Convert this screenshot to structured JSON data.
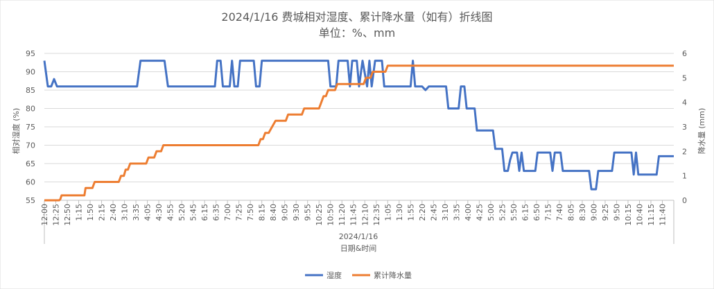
{
  "chart_data": {
    "type": "line",
    "title": "2024/1/16 费城相对湿度、累计降水量（如有）折线图",
    "subtitle": "单位：%、mm",
    "xlabel": "日期&时间",
    "x_group_label": "2024/1/16",
    "ylabel_left": "相对湿度 (%)",
    "ylabel_right": "降水量 (mm)",
    "ylim_left": [
      55,
      95
    ],
    "yticks_left": [
      55,
      60,
      65,
      70,
      75,
      80,
      85,
      90,
      95
    ],
    "ylim_right": [
      0,
      6
    ],
    "yticks_right": [
      0,
      1,
      2,
      3,
      4,
      5,
      6
    ],
    "grid": true,
    "legend_position": "bottom",
    "colors": {
      "humidity": "#4472C4",
      "precip": "#ED7D31",
      "grid": "#D9D9D9",
      "text": "#595959"
    },
    "x_tick_labels": [
      "12:00",
      "12:25",
      "12:50",
      "1:15",
      "1:50",
      "2:15",
      "2:40",
      "3:10",
      "3:35",
      "4:05",
      "4:30",
      "4:55",
      "5:20",
      "5:45",
      "6:15",
      "6:35",
      "7:00",
      "7:25",
      "7:50",
      "8:15",
      "8:40",
      "9:05",
      "9:30",
      "9:55",
      "10:25",
      "10:50",
      "11:20",
      "11:45",
      "12:10",
      "12:35",
      "1:05",
      "1:30",
      "1:55",
      "2:20",
      "2:45",
      "3:10",
      "3:35",
      "4:00",
      "4:25",
      "5:00",
      "5:25",
      "5:50",
      "6:15",
      "6:50",
      "7:15",
      "7:40",
      "8:05",
      "8:30",
      "9:00",
      "9:25",
      "9:50",
      "10:15",
      "10:40",
      "11:15",
      "11:40"
    ],
    "series": [
      {
        "name": "湿度",
        "axis": "left",
        "points": [
          [
            0,
            93
          ],
          [
            0.3,
            86
          ],
          [
            0.6,
            86
          ],
          [
            0.85,
            88
          ],
          [
            1.1,
            86
          ],
          [
            8.1,
            86
          ],
          [
            8.4,
            93
          ],
          [
            10.5,
            93
          ],
          [
            10.8,
            86
          ],
          [
            14.9,
            86
          ],
          [
            15.1,
            93
          ],
          [
            15.4,
            93
          ],
          [
            15.6,
            86
          ],
          [
            16.2,
            86
          ],
          [
            16.4,
            93
          ],
          [
            16.6,
            86
          ],
          [
            16.9,
            86
          ],
          [
            17.1,
            93
          ],
          [
            18.3,
            93
          ],
          [
            18.5,
            86
          ],
          [
            18.8,
            86
          ],
          [
            19.0,
            93
          ],
          [
            24.8,
            93
          ],
          [
            25.0,
            86
          ],
          [
            25.5,
            86
          ],
          [
            25.7,
            93
          ],
          [
            26.5,
            93
          ],
          [
            26.7,
            86
          ],
          [
            26.9,
            93
          ],
          [
            27.3,
            93
          ],
          [
            27.5,
            86
          ],
          [
            27.8,
            93
          ],
          [
            28.2,
            86
          ],
          [
            28.4,
            93
          ],
          [
            28.6,
            86
          ],
          [
            28.9,
            93
          ],
          [
            29.5,
            93
          ],
          [
            29.7,
            86
          ],
          [
            32.0,
            86
          ],
          [
            32.2,
            93
          ],
          [
            32.4,
            86
          ],
          [
            33.0,
            86
          ],
          [
            33.3,
            85
          ],
          [
            33.6,
            86
          ],
          [
            35.1,
            86
          ],
          [
            35.3,
            80
          ],
          [
            36.2,
            80
          ],
          [
            36.4,
            86
          ],
          [
            36.7,
            86
          ],
          [
            36.9,
            80
          ],
          [
            37.6,
            80
          ],
          [
            37.8,
            74
          ],
          [
            39.2,
            74
          ],
          [
            39.4,
            69
          ],
          [
            40.0,
            69
          ],
          [
            40.2,
            63
          ],
          [
            40.5,
            63
          ],
          [
            40.7,
            66
          ],
          [
            40.9,
            68
          ],
          [
            41.3,
            68
          ],
          [
            41.5,
            63
          ],
          [
            41.7,
            68
          ],
          [
            41.9,
            63
          ],
          [
            42.9,
            63
          ],
          [
            43.1,
            68
          ],
          [
            44.2,
            68
          ],
          [
            44.4,
            63
          ],
          [
            44.6,
            68
          ],
          [
            45.1,
            68
          ],
          [
            45.3,
            63
          ],
          [
            47.6,
            63
          ],
          [
            47.8,
            58
          ],
          [
            48.2,
            58
          ],
          [
            48.4,
            63
          ],
          [
            49.6,
            63
          ],
          [
            49.8,
            68
          ],
          [
            51.3,
            68
          ],
          [
            51.5,
            62
          ],
          [
            51.7,
            68
          ],
          [
            51.9,
            62
          ],
          [
            53.5,
            62
          ],
          [
            53.7,
            67
          ],
          [
            55,
            67
          ]
        ]
      },
      {
        "name": "累计降水量",
        "axis": "right",
        "points": [
          [
            0,
            0
          ],
          [
            1.3,
            0
          ],
          [
            1.4,
            0.05
          ],
          [
            1.5,
            0.2
          ],
          [
            3.5,
            0.2
          ],
          [
            3.6,
            0.5
          ],
          [
            4.2,
            0.5
          ],
          [
            4.4,
            0.75
          ],
          [
            6.5,
            0.75
          ],
          [
            6.7,
            1.0
          ],
          [
            6.95,
            1.0
          ],
          [
            7.1,
            1.25
          ],
          [
            7.3,
            1.25
          ],
          [
            7.5,
            1.5
          ],
          [
            8.9,
            1.5
          ],
          [
            9.1,
            1.75
          ],
          [
            9.6,
            1.75
          ],
          [
            9.8,
            2.0
          ],
          [
            10.2,
            2.0
          ],
          [
            10.4,
            2.25
          ],
          [
            18.7,
            2.25
          ],
          [
            18.9,
            2.5
          ],
          [
            19.1,
            2.5
          ],
          [
            19.3,
            2.75
          ],
          [
            19.6,
            2.75
          ],
          [
            19.9,
            3.0
          ],
          [
            20.2,
            3.25
          ],
          [
            21.1,
            3.25
          ],
          [
            21.3,
            3.5
          ],
          [
            22.5,
            3.5
          ],
          [
            22.7,
            3.75
          ],
          [
            24.0,
            3.75
          ],
          [
            24.2,
            4.0
          ],
          [
            24.4,
            4.25
          ],
          [
            24.6,
            4.25
          ],
          [
            24.8,
            4.5
          ],
          [
            25.4,
            4.5
          ],
          [
            25.6,
            4.75
          ],
          [
            27.9,
            4.75
          ],
          [
            28.1,
            5.0
          ],
          [
            28.5,
            5.0
          ],
          [
            28.7,
            5.25
          ],
          [
            29.8,
            5.25
          ],
          [
            30.0,
            5.5
          ],
          [
            55,
            5.5
          ]
        ]
      }
    ]
  }
}
